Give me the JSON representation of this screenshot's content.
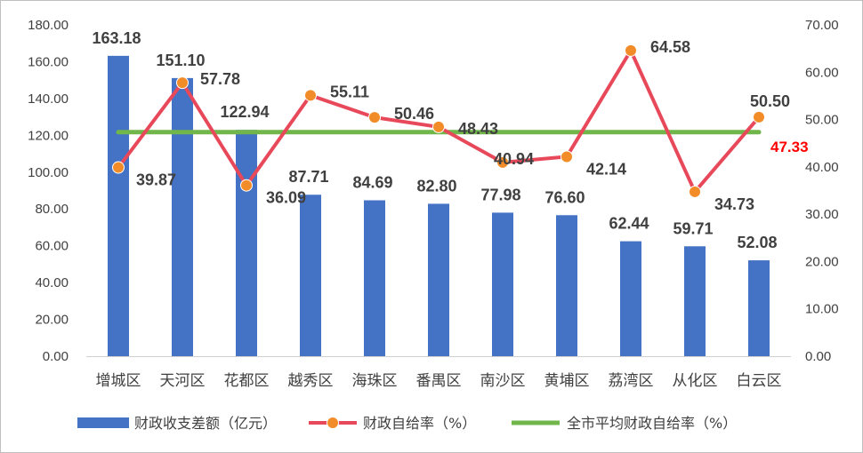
{
  "chart_data": {
    "type": "bar",
    "categories": [
      "增城区",
      "天河区",
      "花都区",
      "越秀区",
      "海珠区",
      "番禺区",
      "南沙区",
      "黄埔区",
      "荔湾区",
      "从化区",
      "白云区"
    ],
    "y_left": {
      "min": 0,
      "max": 180,
      "step": 20,
      "ticks": [
        "0.00",
        "20.00",
        "40.00",
        "60.00",
        "80.00",
        "100.00",
        "120.00",
        "140.00",
        "160.00",
        "180.00"
      ]
    },
    "y_right": {
      "min": 0,
      "max": 70,
      "step": 10,
      "ticks": [
        "0.00",
        "10.00",
        "20.00",
        "30.00",
        "40.00",
        "50.00",
        "60.00",
        "70.00"
      ]
    },
    "series": [
      {
        "name": "财政收支差额（亿元）",
        "type": "bar",
        "axis": "left",
        "color": "#4472c4",
        "values": [
          163.18,
          151.1,
          122.94,
          87.71,
          84.69,
          82.8,
          77.98,
          76.6,
          62.44,
          59.71,
          52.08
        ],
        "labels": [
          "163.18",
          "151.10",
          "122.94",
          "87.71",
          "84.69",
          "82.80",
          "77.98",
          "76.60",
          "62.44",
          "59.71",
          "52.08"
        ]
      },
      {
        "name": "财政自给率（%）",
        "type": "line",
        "axis": "right",
        "color": "#e8495a",
        "marker_color": "#f28c28",
        "values": [
          39.87,
          57.78,
          36.09,
          55.11,
          50.46,
          48.43,
          40.94,
          42.14,
          64.58,
          34.73,
          50.5
        ],
        "labels": [
          "39.87",
          "57.78",
          "36.09",
          "55.11",
          "50.46",
          "48.43",
          "40.94",
          "42.14",
          "64.58",
          "34.73",
          "50.50"
        ]
      },
      {
        "name": "全市平均财政自给率（%）",
        "type": "line",
        "axis": "right",
        "color": "#70b64a",
        "value": 47.33,
        "label": "47.33",
        "label_color": "#ff0000"
      }
    ],
    "legend_position": "bottom",
    "grid": false
  }
}
